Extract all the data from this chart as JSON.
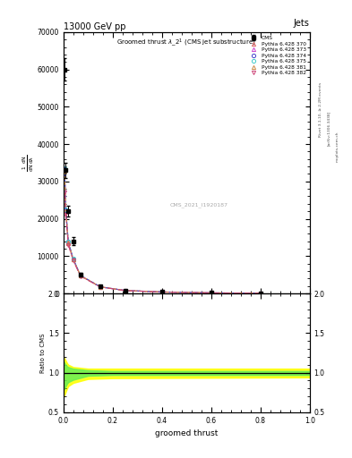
{
  "title": "13000 GeV pp",
  "title_right": "Jets",
  "xlabel": "groomed thrust",
  "ylabel_ratio": "Ratio to CMS",
  "watermark": "CMS_2021_I1920187",
  "rivet_text": "Rivet 3.1.10, ≥ 2.2M events",
  "arxiv_text": "[arXiv:1306.3438]",
  "mcplots_text": "mcplots.cern.ch",
  "xlim": [
    0,
    1
  ],
  "ylim_main": [
    0,
    70000
  ],
  "ylim_ratio": [
    0.5,
    2.0
  ],
  "cms_data_x": [
    0.005,
    0.01,
    0.02,
    0.04,
    0.07,
    0.15,
    0.25,
    0.4,
    0.6,
    0.8
  ],
  "cms_data_y": [
    60000,
    33000,
    22000,
    14000,
    5000,
    1800,
    800,
    400,
    150,
    60
  ],
  "cms_data_ey": [
    3000,
    2000,
    1500,
    1000,
    400,
    150,
    80,
    40,
    20,
    10
  ],
  "mc_x": [
    0.005,
    0.01,
    0.02,
    0.04,
    0.07,
    0.15,
    0.25,
    0.4,
    0.6,
    0.8
  ],
  "mc_370_y": [
    33000,
    22000,
    13500,
    9000,
    4700,
    1750,
    780,
    380,
    140,
    55
  ],
  "mc_373_y": [
    33200,
    22200,
    13700,
    9100,
    4750,
    1760,
    790,
    385,
    142,
    56
  ],
  "mc_374_y": [
    33400,
    22400,
    13900,
    9200,
    4800,
    1770,
    795,
    388,
    144,
    57
  ],
  "mc_375_y": [
    33500,
    22500,
    14000,
    9250,
    4820,
    1775,
    798,
    390,
    145,
    57
  ],
  "mc_381_y": [
    32800,
    22100,
    13600,
    9050,
    4720,
    1755,
    782,
    382,
    141,
    55
  ],
  "mc_382_y": [
    27000,
    21000,
    13000,
    8800,
    4600,
    1720,
    765,
    370,
    135,
    52
  ],
  "background_color": "#ffffff"
}
